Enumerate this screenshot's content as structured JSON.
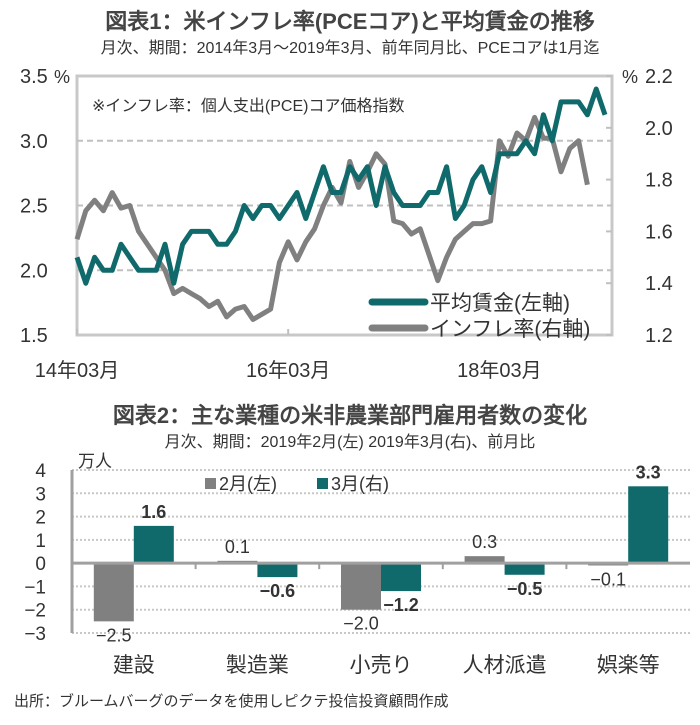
{
  "chart1": {
    "title": "図表1：米インフレ率(PCEコア)と平均賃金の推移",
    "subtitle": "月次、期間：2014年3月～2019年3月、前年同月比、PCEコアは1月迄",
    "annotation": "※インフレ率：個人支出(PCE)コア価格指数",
    "left_unit": "%",
    "right_unit": "%"
  },
  "chart2": {
    "title": "図表2：主な業種の米非農業部門雇用者数の変化",
    "subtitle": "月次、期間：2019年2月(左) 2019年3月(右)、前月比",
    "unit": "万人"
  },
  "source": "出所：ブルームバーグのデータを使用しピクテ投信投資顧問作成",
  "chart_data": [
    {
      "type": "line",
      "title": "図表1：米インフレ率(PCEコア)と平均賃金の推移",
      "x_start": "2014-03",
      "x_frequency": "monthly",
      "xtick_labels": [
        "14年03月",
        "16年03月",
        "18年03月"
      ],
      "xtick_index": [
        0,
        24,
        48
      ],
      "y_left": {
        "ylim": [
          1.5,
          3.5
        ],
        "ticks": [
          "3.5",
          "3.0",
          "2.5",
          "2.0",
          "1.5"
        ],
        "unit": "%"
      },
      "y_right": {
        "ylim": [
          1.2,
          2.2
        ],
        "ticks": [
          "2.2",
          "2.0",
          "1.8",
          "1.6",
          "1.4",
          "1.2"
        ],
        "unit": "%"
      },
      "grid": true,
      "legend_placement": "bottom-right",
      "series": [
        {
          "name": "平均賃金(左軸)",
          "axis": "left",
          "color": "#106a6c",
          "values": [
            2.1,
            1.9,
            2.1,
            2.0,
            2.0,
            2.2,
            2.1,
            2.0,
            2.0,
            2.0,
            2.2,
            1.9,
            2.2,
            2.3,
            2.3,
            2.3,
            2.2,
            2.2,
            2.3,
            2.5,
            2.4,
            2.5,
            2.5,
            2.4,
            2.5,
            2.6,
            2.4,
            2.6,
            2.8,
            2.6,
            2.6,
            2.8,
            2.7,
            2.8,
            2.5,
            2.8,
            2.6,
            2.5,
            2.5,
            2.5,
            2.6,
            2.6,
            2.8,
            2.4,
            2.5,
            2.7,
            2.8,
            2.6,
            2.9,
            2.9,
            2.9,
            3.0,
            2.9,
            3.2,
            3.0,
            3.3,
            3.3,
            3.3,
            3.2,
            3.4,
            3.2
          ]
        },
        {
          "name": "インフレ率(右軸)",
          "axis": "right",
          "color": "#808080",
          "values": [
            1.57,
            1.68,
            1.72,
            1.68,
            1.75,
            1.69,
            1.7,
            1.6,
            1.55,
            1.5,
            1.45,
            1.36,
            1.38,
            1.36,
            1.34,
            1.31,
            1.33,
            1.27,
            1.3,
            1.31,
            1.26,
            1.28,
            1.3,
            1.48,
            1.56,
            1.49,
            1.56,
            1.61,
            1.7,
            1.77,
            1.71,
            1.87,
            1.77,
            1.83,
            1.9,
            1.86,
            1.64,
            1.63,
            1.59,
            1.61,
            1.51,
            1.41,
            1.5,
            1.57,
            1.6,
            1.63,
            1.63,
            1.64,
            1.95,
            1.89,
            1.98,
            1.95,
            2.04,
            1.96,
            1.96,
            1.83,
            1.92,
            1.95,
            1.78
          ]
        }
      ]
    },
    {
      "type": "bar",
      "title": "図表2：主な業種の米非農業部門雇用者数の変化",
      "ylabel": "万人",
      "ylim": [
        -3,
        4
      ],
      "yticks": [
        "4",
        "3",
        "2",
        "1",
        "0",
        "-1",
        "-2",
        "-3"
      ],
      "grid": true,
      "legend_placement": "top",
      "categories": [
        "建設",
        "製造業",
        "小売り",
        "人材派遣",
        "娯楽等"
      ],
      "series": [
        {
          "name": "2月(左)",
          "color": "#808080",
          "values": [
            -2.5,
            0.1,
            -2.0,
            0.3,
            -0.1
          ],
          "labels": [
            "-2.5",
            "0.1",
            "-2.0",
            "0.3",
            "-0.1"
          ]
        },
        {
          "name": "3月(右)",
          "color": "#106a6c",
          "values": [
            1.6,
            -0.6,
            -1.2,
            -0.5,
            3.3
          ],
          "labels": [
            "1.6",
            "-0.6",
            "-1.2",
            "-0.5",
            "3.3"
          ]
        }
      ]
    }
  ]
}
